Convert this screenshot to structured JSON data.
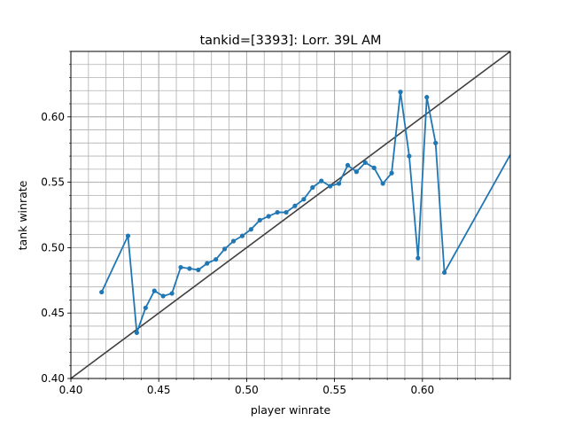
{
  "chart_data": {
    "type": "line",
    "title": "tankid=[3393]: Lorr. 39L AM",
    "xlabel": "player winrate",
    "ylabel": "tank winrate",
    "xlim": [
      0.4,
      0.65
    ],
    "ylim": [
      0.4,
      0.65
    ],
    "x_ticks": [
      0.4,
      0.45,
      0.5,
      0.55,
      0.6
    ],
    "y_ticks": [
      0.4,
      0.45,
      0.5,
      0.55,
      0.6
    ],
    "x_tick_labels": [
      "0.40",
      "0.45",
      "0.50",
      "0.55",
      "0.60"
    ],
    "y_tick_labels": [
      "0.40",
      "0.45",
      "0.50",
      "0.55",
      "0.60"
    ],
    "grid": true,
    "minor_grid_step": 0.01,
    "reference_line": {
      "x": [
        0.4,
        0.65
      ],
      "y": [
        0.4,
        0.65
      ],
      "color": "#404040"
    },
    "series": [
      {
        "color": "#1f77b4",
        "points": [
          [
            0.4175,
            0.466
          ],
          [
            0.4325,
            0.509
          ],
          [
            0.4375,
            0.435
          ],
          [
            0.4425,
            0.454
          ],
          [
            0.4475,
            0.467
          ],
          [
            0.4525,
            0.463
          ],
          [
            0.4575,
            0.465
          ],
          [
            0.4625,
            0.485
          ],
          [
            0.4675,
            0.484
          ],
          [
            0.4725,
            0.483
          ],
          [
            0.4775,
            0.488
          ],
          [
            0.4825,
            0.491
          ],
          [
            0.4875,
            0.499
          ],
          [
            0.4925,
            0.505
          ],
          [
            0.4975,
            0.509
          ],
          [
            0.5025,
            0.514
          ],
          [
            0.5075,
            0.521
          ],
          [
            0.5125,
            0.524
          ],
          [
            0.5175,
            0.527
          ],
          [
            0.5225,
            0.527
          ],
          [
            0.5275,
            0.532
          ],
          [
            0.5325,
            0.537
          ],
          [
            0.5375,
            0.546
          ],
          [
            0.5425,
            0.551
          ],
          [
            0.5475,
            0.547
          ],
          [
            0.5525,
            0.549
          ],
          [
            0.5575,
            0.563
          ],
          [
            0.5625,
            0.558
          ],
          [
            0.5675,
            0.565
          ],
          [
            0.5725,
            0.561
          ],
          [
            0.5775,
            0.549
          ],
          [
            0.5825,
            0.557
          ],
          [
            0.5875,
            0.619
          ],
          [
            0.5925,
            0.57
          ],
          [
            0.5975,
            0.492
          ],
          [
            0.6025,
            0.615
          ],
          [
            0.6075,
            0.58
          ],
          [
            0.6125,
            0.481
          ],
          [
            0.65,
            0.571
          ]
        ]
      }
    ]
  }
}
